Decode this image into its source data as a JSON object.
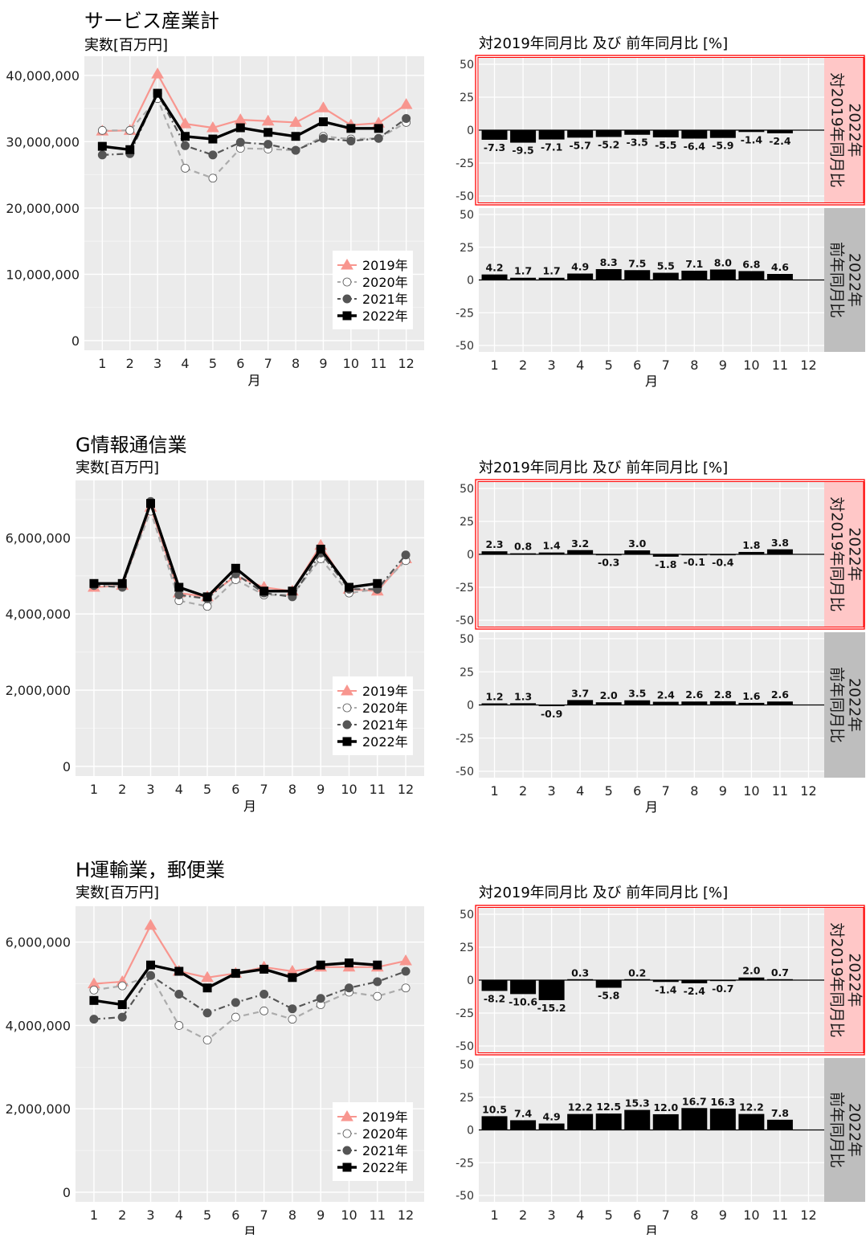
{
  "legend": [
    {
      "label": "2019年",
      "color": "#F8968F",
      "shape": "triangle",
      "dash": "",
      "fill": "#F8968F"
    },
    {
      "label": "2020年",
      "color": "#ababab",
      "shape": "circle",
      "dash": "7,5",
      "fill": "#ffffff"
    },
    {
      "label": "2021年",
      "color": "#555555",
      "shape": "circle",
      "dash": "8,4,2,4",
      "fill": "#555555"
    },
    {
      "label": "2022年",
      "color": "#000000",
      "shape": "square",
      "dash": "",
      "fill": "#000000"
    }
  ],
  "colors": {
    "panel": "#EBEBEB",
    "strip_red": "#FFC7C7",
    "strip_grey": "#BEBEBE",
    "highlight": "#FF0000"
  },
  "chart_data": [
    {
      "type": "line",
      "title": "サービス産業計",
      "ylabel": "実数[百万円]",
      "xlabel": "月",
      "x": [
        1,
        2,
        3,
        4,
        5,
        6,
        7,
        8,
        9,
        10,
        11,
        12
      ],
      "ylim": [
        0,
        40000000
      ],
      "yticks": [
        0,
        10000000,
        20000000,
        30000000,
        40000000
      ],
      "ytick_labels": [
        "0",
        "10,000,000",
        "20,000,000",
        "30,000,000",
        "40,000,000"
      ],
      "legend_position": "bottom-right",
      "series": [
        {
          "name": "2019年",
          "values": [
            31600000,
            31700000,
            40200000,
            32700000,
            32100000,
            33300000,
            33100000,
            32900000,
            35100000,
            32500000,
            32800000,
            35600000
          ]
        },
        {
          "name": "2020年",
          "values": [
            31700000,
            31700000,
            36500000,
            26000000,
            24500000,
            29000000,
            28900000,
            28700000,
            30800000,
            30400000,
            30500000,
            32900000
          ]
        },
        {
          "name": "2021年",
          "values": [
            28000000,
            28200000,
            37300000,
            29400000,
            28000000,
            29900000,
            29600000,
            28700000,
            30500000,
            30100000,
            30500000,
            33500000
          ]
        },
        {
          "name": "2022年",
          "values": [
            29300000,
            28800000,
            37300000,
            30800000,
            30400000,
            32100000,
            31400000,
            30800000,
            33000000,
            32000000,
            32000000,
            null
          ]
        }
      ],
      "bars": {
        "title": "対2019年同月比 及び 前年同月比 [%]",
        "xlabel": "月",
        "x": [
          1,
          2,
          3,
          4,
          5,
          6,
          7,
          8,
          9,
          10,
          11,
          12
        ],
        "ylim": [
          -50,
          50
        ],
        "yticks": [
          -50,
          -25,
          0,
          25,
          50
        ],
        "panels": [
          {
            "strip": "2022年 対2019年同月比",
            "strip_lines": [
              "2022年",
              "対2019年同月比"
            ],
            "highlighted": true,
            "values": [
              -7.3,
              -9.5,
              -7.1,
              -5.7,
              -5.2,
              -3.5,
              -5.5,
              -6.4,
              -5.9,
              -1.4,
              -2.4,
              null
            ],
            "labels": [
              "-7.3",
              "-9.5",
              "-7.1",
              "-5.7",
              "-5.2",
              "-3.5",
              "-5.5",
              "-6.4",
              "-5.9",
              "-1.4",
              "-2.4",
              ""
            ]
          },
          {
            "strip": "2022年 前年同月比",
            "strip_lines": [
              "2022年",
              "前年同月比"
            ],
            "highlighted": false,
            "values": [
              4.2,
              1.7,
              1.7,
              4.9,
              8.3,
              7.5,
              5.5,
              7.1,
              8.0,
              6.8,
              4.6,
              null
            ],
            "labels": [
              "4.2",
              "1.7",
              "1.7",
              "4.9",
              "8.3",
              "7.5",
              "5.5",
              "7.1",
              "8.0",
              "6.8",
              "4.6",
              ""
            ]
          }
        ]
      }
    },
    {
      "type": "line",
      "title": "G情報通信業",
      "ylabel": "実数[百万円]",
      "xlabel": "月",
      "x": [
        1,
        2,
        3,
        4,
        5,
        6,
        7,
        8,
        9,
        10,
        11,
        12
      ],
      "ylim": [
        0,
        7000000
      ],
      "yticks": [
        0,
        2000000,
        4000000,
        6000000
      ],
      "ytick_labels": [
        "0",
        "2,000,000",
        "4,000,000",
        "6,000,000"
      ],
      "legend_position": "bottom-right",
      "series": [
        {
          "name": "2019年",
          "values": [
            4700000,
            4750000,
            6800000,
            4550000,
            4450000,
            5000000,
            4700000,
            4600000,
            5800000,
            4650000,
            4600000,
            5450000
          ]
        },
        {
          "name": "2020年",
          "values": [
            4750000,
            4750000,
            6700000,
            4350000,
            4200000,
            4900000,
            4500000,
            4500000,
            5450000,
            4550000,
            4650000,
            5400000
          ]
        },
        {
          "name": "2021年",
          "values": [
            4750000,
            4700000,
            6950000,
            4500000,
            4400000,
            5050000,
            4550000,
            4450000,
            5600000,
            4650000,
            4650000,
            5550000
          ]
        },
        {
          "name": "2022年",
          "values": [
            4800000,
            4800000,
            6900000,
            4700000,
            4450000,
            5200000,
            4600000,
            4600000,
            5700000,
            4700000,
            4800000,
            null
          ]
        }
      ],
      "bars": {
        "title": "対2019年同月比 及び 前年同月比 [%]",
        "xlabel": "月",
        "x": [
          1,
          2,
          3,
          4,
          5,
          6,
          7,
          8,
          9,
          10,
          11,
          12
        ],
        "ylim": [
          -50,
          50
        ],
        "yticks": [
          -50,
          -25,
          0,
          25,
          50
        ],
        "panels": [
          {
            "strip": "2022年 対2019年同月比",
            "strip_lines": [
              "2022年",
              "対2019年同月比"
            ],
            "highlighted": true,
            "values": [
              2.3,
              0.8,
              1.4,
              3.2,
              -0.3,
              3.0,
              -1.8,
              -0.1,
              -0.4,
              1.8,
              3.8,
              null
            ],
            "labels": [
              "2.3",
              "0.8",
              "1.4",
              "3.2",
              "-0.3",
              "3.0",
              "-1.8",
              "-0.1",
              "-0.4",
              "1.8",
              "3.8",
              ""
            ]
          },
          {
            "strip": "2022年 前年同月比",
            "strip_lines": [
              "2022年",
              "前年同月比"
            ],
            "highlighted": false,
            "values": [
              1.2,
              1.3,
              -0.9,
              3.7,
              2.0,
              3.5,
              2.4,
              2.6,
              2.8,
              1.6,
              2.6,
              null
            ],
            "labels": [
              "1.2",
              "1.3",
              "-0.9",
              "3.7",
              "2.0",
              "3.5",
              "2.4",
              "2.6",
              "2.8",
              "1.6",
              "2.6",
              ""
            ]
          }
        ]
      }
    },
    {
      "type": "line",
      "title": "H運輸業，郵便業",
      "ylabel": "実数[百万円]",
      "xlabel": "月",
      "x": [
        1,
        2,
        3,
        4,
        5,
        6,
        7,
        8,
        9,
        10,
        11,
        12
      ],
      "ylim": [
        0,
        6400000
      ],
      "yticks": [
        0,
        2000000,
        4000000,
        6000000
      ],
      "ytick_labels": [
        "0",
        "2,000,000",
        "4,000,000",
        "6,000,000"
      ],
      "legend_position": "bottom-right",
      "series": [
        {
          "name": "2019年",
          "values": [
            5000000,
            5050000,
            6400000,
            5300000,
            5150000,
            5250000,
            5400000,
            5300000,
            5400000,
            5400000,
            5400000,
            5550000
          ]
        },
        {
          "name": "2020年",
          "values": [
            4850000,
            4950000,
            5200000,
            4000000,
            3650000,
            4200000,
            4350000,
            4150000,
            4500000,
            4800000,
            4700000,
            4900000
          ]
        },
        {
          "name": "2021年",
          "values": [
            4150000,
            4200000,
            5200000,
            4750000,
            4300000,
            4550000,
            4750000,
            4400000,
            4650000,
            4900000,
            5050000,
            5300000
          ]
        },
        {
          "name": "2022年",
          "values": [
            4600000,
            4500000,
            5450000,
            5300000,
            4900000,
            5250000,
            5350000,
            5150000,
            5450000,
            5500000,
            5450000,
            null
          ]
        }
      ],
      "bars": {
        "title": "対2019年同月比 及び 前年同月比 [%]",
        "xlabel": "月",
        "x": [
          1,
          2,
          3,
          4,
          5,
          6,
          7,
          8,
          9,
          10,
          11,
          12
        ],
        "ylim": [
          -50,
          50
        ],
        "yticks": [
          -50,
          -25,
          0,
          25,
          50
        ],
        "panels": [
          {
            "strip": "2022年 対2019年同月比",
            "strip_lines": [
              "2022年",
              "対2019年同月比"
            ],
            "highlighted": true,
            "values": [
              -8.2,
              -10.6,
              -15.2,
              0.3,
              -5.8,
              0.2,
              -1.4,
              -2.4,
              -0.7,
              2.0,
              0.7,
              null
            ],
            "labels": [
              "-8.2",
              "-10.6",
              "-15.2",
              "0.3",
              "-5.8",
              "0.2",
              "-1.4",
              "-2.4",
              "-0.7",
              "2.0",
              "0.7",
              ""
            ]
          },
          {
            "strip": "2022年 前年同月比",
            "strip_lines": [
              "2022年",
              "前年同月比"
            ],
            "highlighted": false,
            "values": [
              10.5,
              7.4,
              4.9,
              12.2,
              12.5,
              15.3,
              12.0,
              16.7,
              16.3,
              12.2,
              7.8,
              null
            ],
            "labels": [
              "10.5",
              "7.4",
              "4.9",
              "12.2",
              "12.5",
              "15.3",
              "12.0",
              "16.7",
              "16.3",
              "12.2",
              "7.8",
              ""
            ]
          }
        ]
      }
    }
  ]
}
